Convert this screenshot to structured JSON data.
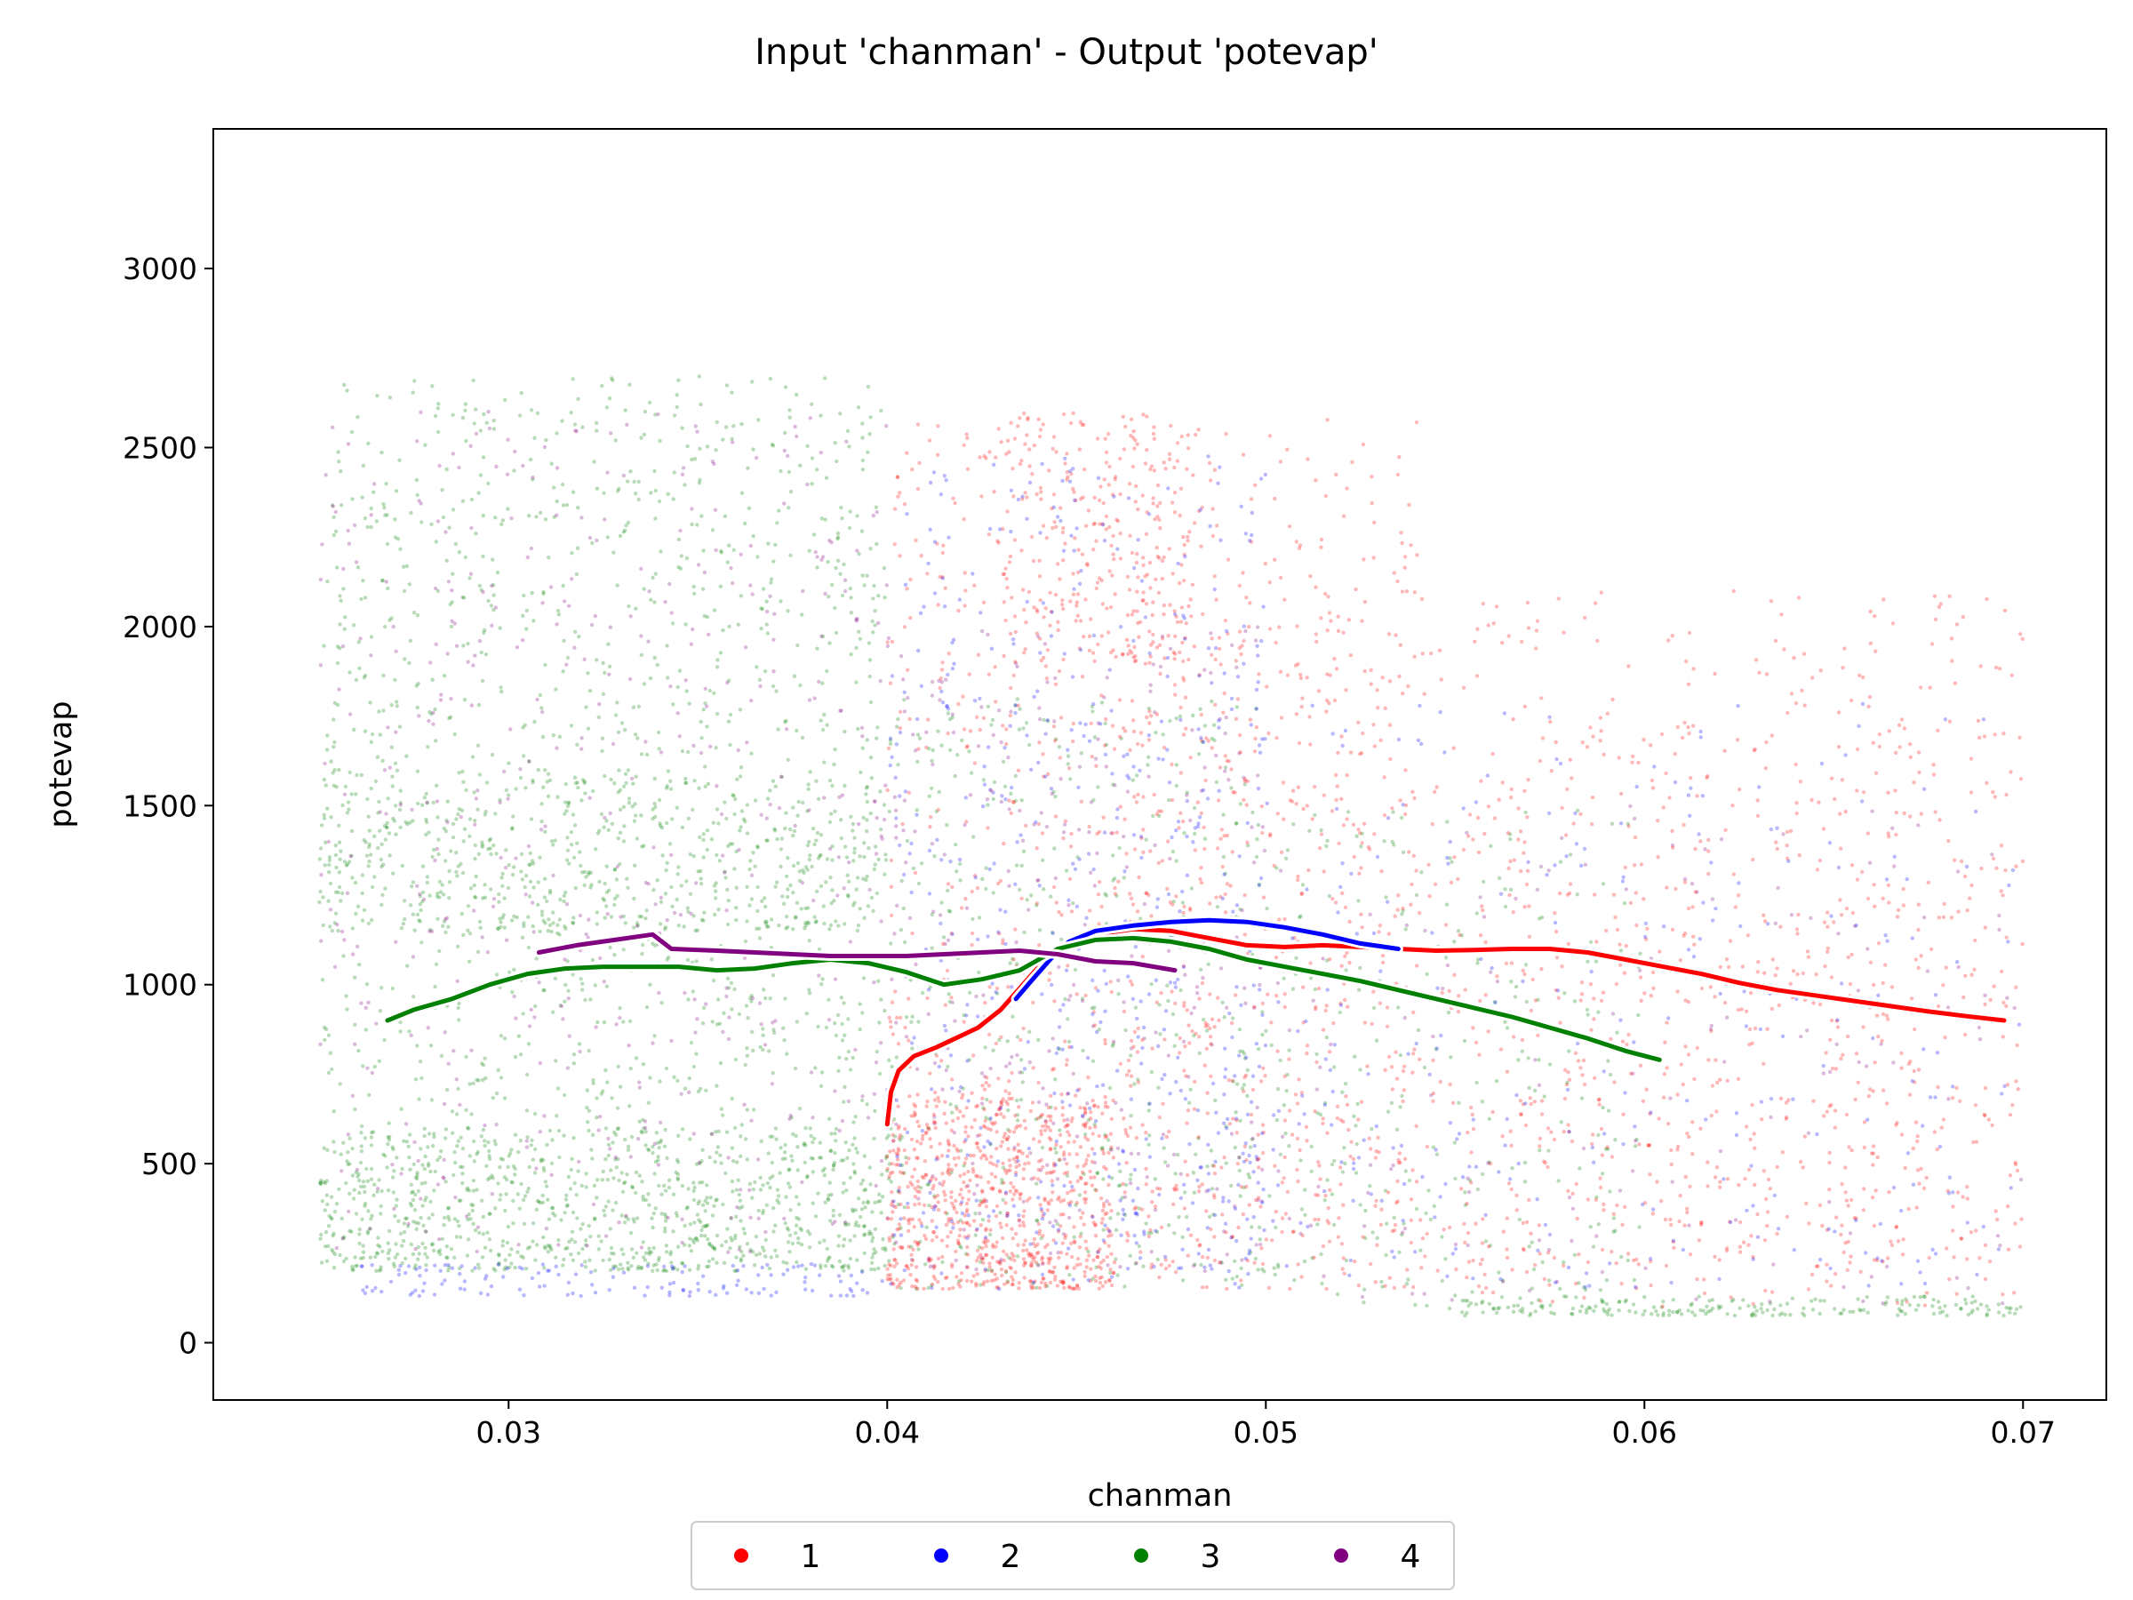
{
  "chart_data": {
    "type": "scatter",
    "title": "Input 'chanman' - Output 'potevap'",
    "xlabel": "chanman",
    "ylabel": "potevap",
    "xlim": [
      0.0222,
      0.0722
    ],
    "ylim": [
      -160,
      3390
    ],
    "xticks": [
      {
        "value": 0.03,
        "label": "0.03"
      },
      {
        "value": 0.04,
        "label": "0.04"
      },
      {
        "value": 0.05,
        "label": "0.05"
      },
      {
        "value": 0.06,
        "label": "0.06"
      },
      {
        "value": 0.07,
        "label": "0.07"
      }
    ],
    "yticks": [
      {
        "value": 0,
        "label": "0"
      },
      {
        "value": 500,
        "label": "500"
      },
      {
        "value": 1000,
        "label": "1000"
      },
      {
        "value": 1500,
        "label": "1500"
      },
      {
        "value": 2000,
        "label": "2000"
      },
      {
        "value": 2500,
        "label": "2500"
      },
      {
        "value": 3000,
        "label": "3000"
      }
    ],
    "legend_position": "below-center",
    "grid": false,
    "series": [
      {
        "name": "1",
        "color": "#ff0000",
        "trend": [
          [
            0.04,
            610
          ],
          [
            0.0401,
            700
          ],
          [
            0.0403,
            760
          ],
          [
            0.0407,
            800
          ],
          [
            0.0413,
            825
          ],
          [
            0.0418,
            850
          ],
          [
            0.0424,
            880
          ],
          [
            0.043,
            930
          ],
          [
            0.0435,
            990
          ],
          [
            0.044,
            1050
          ],
          [
            0.0447,
            1110
          ],
          [
            0.0455,
            1140
          ],
          [
            0.0465,
            1155
          ],
          [
            0.0475,
            1150
          ],
          [
            0.0485,
            1130
          ],
          [
            0.0495,
            1110
          ],
          [
            0.0505,
            1105
          ],
          [
            0.0515,
            1110
          ],
          [
            0.0525,
            1105
          ],
          [
            0.0535,
            1100
          ],
          [
            0.0545,
            1095
          ],
          [
            0.0555,
            1097
          ],
          [
            0.0565,
            1100
          ],
          [
            0.0575,
            1100
          ],
          [
            0.0585,
            1090
          ],
          [
            0.0595,
            1070
          ],
          [
            0.0605,
            1050
          ],
          [
            0.0615,
            1030
          ],
          [
            0.0625,
            1005
          ],
          [
            0.0635,
            985
          ],
          [
            0.0645,
            970
          ],
          [
            0.0655,
            955
          ],
          [
            0.0665,
            940
          ],
          [
            0.0675,
            925
          ],
          [
            0.0685,
            912
          ],
          [
            0.0695,
            900
          ]
        ],
        "clusters": [
          {
            "x": [
              0.04,
              0.054
            ],
            "y": [
              150,
              2600
            ],
            "n": 900
          },
          {
            "x": [
              0.04,
              0.046
            ],
            "y": [
              150,
              700
            ],
            "n": 700
          },
          {
            "x": [
              0.043,
              0.048
            ],
            "y": [
              1900,
              2600
            ],
            "n": 250
          },
          {
            "x": [
              0.046,
              0.07
            ],
            "y": [
              200,
              2100
            ],
            "n": 900
          },
          {
            "x": [
              0.055,
              0.07
            ],
            "y": [
              100,
              1700
            ],
            "n": 400
          }
        ]
      },
      {
        "name": "2",
        "color": "#0000ff",
        "trend": [
          [
            0.0434,
            960
          ],
          [
            0.0438,
            1010
          ],
          [
            0.0443,
            1070
          ],
          [
            0.0448,
            1120
          ],
          [
            0.0455,
            1150
          ],
          [
            0.0465,
            1165
          ],
          [
            0.0475,
            1175
          ],
          [
            0.0485,
            1180
          ],
          [
            0.0495,
            1175
          ],
          [
            0.0505,
            1160
          ],
          [
            0.0515,
            1140
          ],
          [
            0.0525,
            1115
          ],
          [
            0.0535,
            1100
          ]
        ],
        "clusters": [
          {
            "x": [
              0.04,
              0.05
            ],
            "y": [
              150,
              2500
            ],
            "n": 500
          },
          {
            "x": [
              0.026,
              0.04
            ],
            "y": [
              130,
              220
            ],
            "n": 140
          },
          {
            "x": [
              0.046,
              0.07
            ],
            "y": [
              150,
              1800
            ],
            "n": 350
          }
        ]
      },
      {
        "name": "3",
        "color": "#008000",
        "trend": [
          [
            0.0268,
            900
          ],
          [
            0.0275,
            930
          ],
          [
            0.0285,
            960
          ],
          [
            0.0295,
            1000
          ],
          [
            0.0305,
            1030
          ],
          [
            0.0315,
            1045
          ],
          [
            0.0325,
            1050
          ],
          [
            0.0335,
            1050
          ],
          [
            0.0345,
            1050
          ],
          [
            0.0355,
            1040
          ],
          [
            0.0365,
            1045
          ],
          [
            0.0375,
            1060
          ],
          [
            0.0385,
            1070
          ],
          [
            0.0395,
            1060
          ],
          [
            0.0405,
            1035
          ],
          [
            0.0415,
            1000
          ],
          [
            0.0425,
            1015
          ],
          [
            0.0435,
            1040
          ],
          [
            0.0445,
            1100
          ],
          [
            0.0455,
            1125
          ],
          [
            0.0465,
            1130
          ],
          [
            0.0475,
            1120
          ],
          [
            0.0485,
            1100
          ],
          [
            0.0495,
            1070
          ],
          [
            0.0505,
            1050
          ],
          [
            0.0515,
            1030
          ],
          [
            0.0525,
            1010
          ],
          [
            0.0535,
            985
          ],
          [
            0.0545,
            960
          ],
          [
            0.0555,
            935
          ],
          [
            0.0565,
            910
          ],
          [
            0.0575,
            880
          ],
          [
            0.0585,
            850
          ],
          [
            0.0595,
            815
          ],
          [
            0.0604,
            790
          ]
        ],
        "clusters": [
          {
            "x": [
              0.025,
              0.04
            ],
            "y": [
              200,
              2700
            ],
            "n": 1400
          },
          {
            "x": [
              0.025,
              0.04
            ],
            "y": [
              200,
              600
            ],
            "n": 700
          },
          {
            "x": [
              0.025,
              0.04
            ],
            "y": [
              1150,
              1600
            ],
            "n": 500
          },
          {
            "x": [
              0.04,
              0.05
            ],
            "y": [
              150,
              1800
            ],
            "n": 500
          },
          {
            "x": [
              0.05,
              0.06
            ],
            "y": [
              80,
              1500
            ],
            "n": 300
          },
          {
            "x": [
              0.055,
              0.07
            ],
            "y": [
              75,
              130
            ],
            "n": 200
          }
        ]
      },
      {
        "name": "4",
        "color": "#800080",
        "trend": [
          [
            0.0308,
            1090
          ],
          [
            0.0318,
            1110
          ],
          [
            0.0328,
            1125
          ],
          [
            0.0338,
            1140
          ],
          [
            0.0343,
            1100
          ],
          [
            0.0355,
            1095
          ],
          [
            0.0365,
            1090
          ],
          [
            0.0375,
            1085
          ],
          [
            0.0385,
            1080
          ],
          [
            0.0395,
            1080
          ],
          [
            0.0405,
            1080
          ],
          [
            0.0415,
            1085
          ],
          [
            0.0425,
            1090
          ],
          [
            0.0435,
            1095
          ],
          [
            0.0445,
            1085
          ],
          [
            0.0455,
            1065
          ],
          [
            0.0465,
            1060
          ],
          [
            0.0476,
            1040
          ]
        ],
        "clusters": [
          {
            "x": [
              0.025,
              0.04
            ],
            "y": [
              250,
              2600
            ],
            "n": 500
          },
          {
            "x": [
              0.04,
              0.05
            ],
            "y": [
              200,
              2000
            ],
            "n": 300
          },
          {
            "x": [
              0.05,
              0.07
            ],
            "y": [
              100,
              1500
            ],
            "n": 150
          }
        ]
      }
    ]
  }
}
